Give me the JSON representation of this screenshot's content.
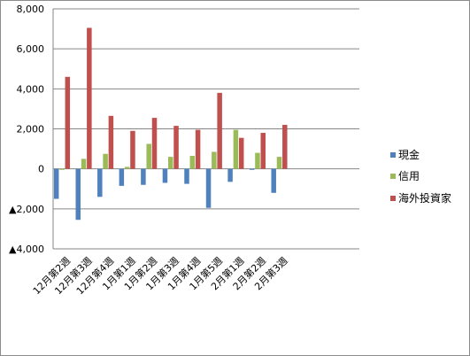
{
  "chart_data": {
    "type": "bar",
    "categories": [
      "12月第2週",
      "12月第3週",
      "12月第4週",
      "1月第1週",
      "1月第2週",
      "1月第3週",
      "1月第4週",
      "1月第5週",
      "2月第1週",
      "2月第2週",
      "2月第3週"
    ],
    "y_tick_labels": [
      "▲4,000",
      "▲2,000",
      "0",
      "2,000",
      "4,000",
      "6,000",
      "8,000"
    ],
    "y_tick_values": [
      -4000,
      -2000,
      0,
      2000,
      4000,
      6000,
      8000
    ],
    "ylim": [
      -4000,
      8000
    ],
    "grid": true,
    "legend_position": "right",
    "series": [
      {
        "name": "現金",
        "color": "#4f81bd",
        "values": [
          -1500,
          -2550,
          -1400,
          -850,
          -800,
          -700,
          -750,
          -1950,
          -650,
          -50,
          -1200
        ]
      },
      {
        "name": "信用",
        "color": "#9bbb59",
        "values": [
          -50,
          500,
          750,
          100,
          1250,
          600,
          650,
          850,
          1950,
          800,
          600
        ]
      },
      {
        "name": "海外投資家",
        "color": "#c0504d",
        "values": [
          4600,
          7050,
          2650,
          1900,
          2550,
          2150,
          1950,
          3800,
          1550,
          1800,
          2200
        ]
      }
    ]
  }
}
